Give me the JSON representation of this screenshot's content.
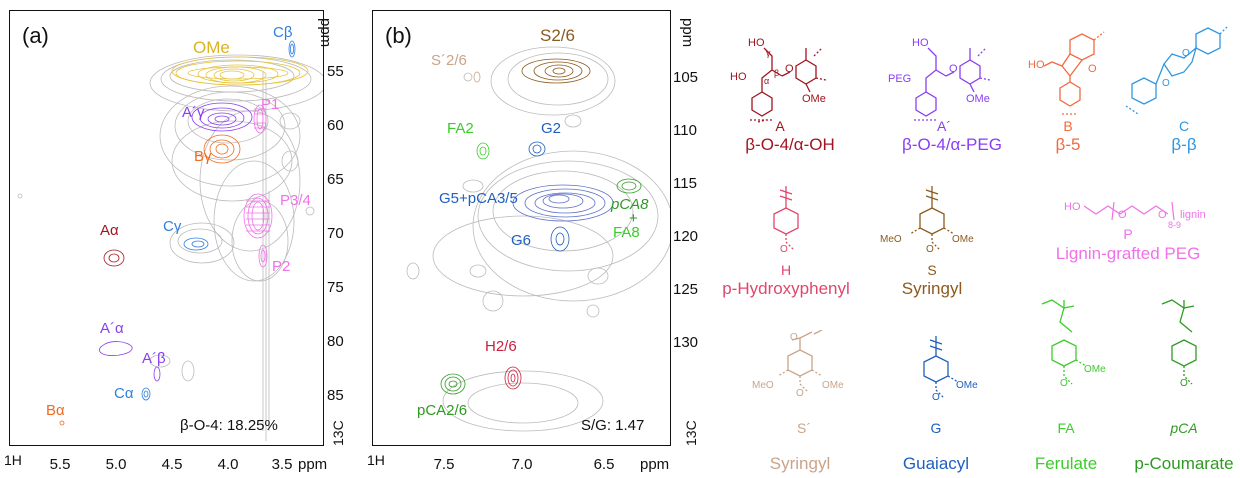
{
  "panel_a": {
    "label": "(a)",
    "y_unit": "ppm",
    "y_ticks": [
      "55",
      "60",
      "65",
      "70",
      "75",
      "80",
      "85"
    ],
    "x_ticks": [
      "5.5",
      "5.0",
      "4.5",
      "4.0",
      "3.5"
    ],
    "x_unit": "ppm",
    "x_nucleus": "1H",
    "y_nucleus": "13C",
    "summary": "β-O-4: 18.25%",
    "annotations": {
      "ome": "OMe",
      "cb": "Cβ",
      "ag": "A´γ",
      "p1": "P1",
      "bg": "Bγ",
      "p34": "P3/4",
      "aa": "Aα",
      "cg": "Cγ",
      "p2": "P2",
      "apa": "A´α",
      "apb": "A´β",
      "ca": "Cα",
      "ba": "Bα"
    }
  },
  "panel_b": {
    "label": "(b)",
    "y_unit": "ppm",
    "y_ticks": [
      "105",
      "110",
      "115",
      "120",
      "125",
      "130"
    ],
    "x_ticks": [
      "7.5",
      "7.0",
      "6.5"
    ],
    "x_unit": "ppm",
    "x_nucleus": "1H",
    "y_nucleus": "13C",
    "summary": "S/G: 1.47",
    "annotations": {
      "s26": "S2/6",
      "sp26": "S´2/6",
      "fa2": "FA2",
      "g2": "G2",
      "g5": "G5+pCA3/5",
      "pca8": "pCA8",
      "plus": "+",
      "fa8": "FA8",
      "g6": "G6",
      "h26": "H2/6",
      "pca26": "pCA2/6"
    }
  },
  "structures": {
    "A": {
      "name": "A",
      "desc": "β-O-4/α-OH",
      "color": "#a0151f"
    },
    "Ap": {
      "name": "A´",
      "desc": "β-O-4/α-PEG",
      "color": "#8a3ff0"
    },
    "B": {
      "name": "B",
      "desc": "β-5",
      "color": "#f26a3d"
    },
    "C": {
      "name": "C",
      "desc": "β-β",
      "color": "#2f97e0"
    },
    "H": {
      "name": "H",
      "desc": "p-Hydroxyphenyl",
      "color": "#e0476b"
    },
    "S": {
      "name": "S",
      "desc": "Syringyl",
      "color": "#8b5a1e"
    },
    "P": {
      "name": "P",
      "desc": "Lignin-grafted PEG",
      "color": "#f071e8"
    },
    "Sp": {
      "name": "S´",
      "desc": "Syringyl",
      "color": "#c9a48a"
    },
    "G": {
      "name": "G",
      "desc": "Guaiacyl",
      "color": "#1f5fbf"
    },
    "FA": {
      "name": "FA",
      "desc": "Ferulate",
      "color": "#3ccc2c"
    },
    "pCA": {
      "name": "pCA",
      "desc": "p-Coumarate",
      "color": "#2e9a22"
    }
  },
  "atom_labels": {
    "ho": "HO",
    "ome": "OMe",
    "meo": "MeO",
    "peg": "PEG",
    "o": "O",
    "lignin": "lignin",
    "n89": "8-9",
    "gamma": "γ",
    "beta": "β",
    "alpha": "α"
  }
}
